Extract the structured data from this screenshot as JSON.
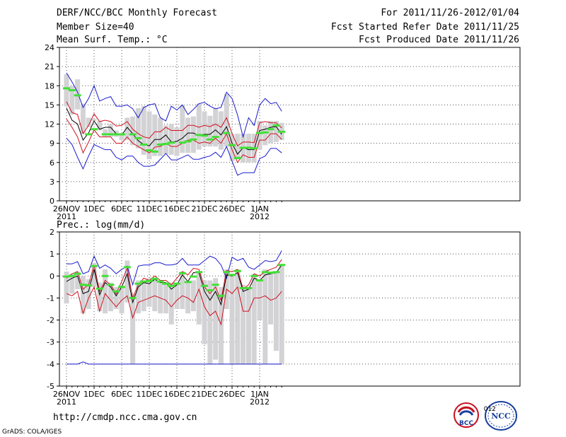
{
  "header": {
    "title": "DERF/NCC/BCC Monthly Forecast",
    "member_size": "Member Size=40",
    "variable": "Mean Surf. Temp.: °C",
    "period": "For 2011/11/26-2012/01/04",
    "start_date": "Fcst Started Refer Date 2011/11/25",
    "produced_date": "Fcst Produced Date 2011/11/26"
  },
  "footer": {
    "url": "http://cmdp.ncc.cma.gov.cn",
    "software": "GrADS: COLA/IGES",
    "logo_bcc": "BCC",
    "logo_ncc": "NCC",
    "logo_ncc_year": "2012"
  },
  "colors": {
    "mean": "#000000",
    "spread": "#d0101e",
    "envelope": "#1a1ad0",
    "box": "#d3d3d6",
    "median": "#43e036",
    "grid": "#555555"
  },
  "chart_data": [
    {
      "type": "line",
      "title": "Mean Surf. Temp.: °C",
      "x_tick_labels": [
        "26NOV",
        "1DEC",
        "6DEC",
        "11DEC",
        "16DEC",
        "21DEC",
        "26DEC",
        "1JAN"
      ],
      "x_tick_sublabels": [
        "2011",
        "",
        "",
        "",
        "",
        "",
        "",
        "2012"
      ],
      "ylim": [
        0,
        24
      ],
      "yticks": [
        0,
        3,
        6,
        9,
        12,
        15,
        18,
        21,
        24
      ],
      "series": [
        {
          "name": "max",
          "values": [
            20,
            18.6,
            17,
            14.6,
            16,
            18,
            15.6,
            16,
            16.3,
            14.8,
            14.8,
            15,
            14.4,
            13,
            14.6,
            15,
            15.2,
            13,
            12.5,
            14.8,
            14.2,
            15,
            13.5,
            14.3,
            15.2,
            15.4,
            14.8,
            14.4,
            14.6,
            17,
            16,
            13.4,
            10,
            13,
            11.8,
            15,
            16,
            15.2,
            15.4,
            14
          ]
        },
        {
          "name": "plus-std",
          "values": [
            15.5,
            13.8,
            13.5,
            10.5,
            11.8,
            13.6,
            12.4,
            12.6,
            12.4,
            11.7,
            11.8,
            12.4,
            11.2,
            10.5,
            10,
            9.8,
            10.8,
            10.8,
            11.5,
            11,
            11,
            11,
            11.8,
            11.8,
            11.5,
            11.8,
            11.6,
            12,
            11.5,
            13,
            10.5,
            8.6,
            9.2,
            9.2,
            9.1,
            12.2,
            12.4,
            12.2,
            12.2,
            11.4
          ]
        },
        {
          "name": "mean",
          "values": [
            14.5,
            12.6,
            12,
            9.5,
            10.6,
            12.5,
            11.2,
            11.5,
            11.5,
            10.5,
            10.3,
            11.5,
            10.5,
            9.4,
            8.8,
            8.6,
            9.6,
            9.6,
            10.3,
            9.2,
            9.3,
            9.8,
            10.6,
            10.6,
            10.2,
            10.4,
            10.4,
            11.1,
            10.3,
            11.6,
            9,
            7.3,
            8.3,
            8,
            8,
            11,
            11.2,
            11.5,
            11.6,
            10.4
          ]
        },
        {
          "name": "minus-std",
          "values": [
            12.8,
            11.5,
            10,
            7.5,
            9.2,
            11.1,
            10,
            10,
            10,
            9,
            9,
            10,
            9,
            8.5,
            8,
            7.5,
            8.4,
            8.5,
            9,
            8.5,
            8.5,
            9,
            9.5,
            9.5,
            9,
            9.2,
            9,
            9.8,
            9,
            10.5,
            8,
            6,
            7.2,
            6.8,
            6.8,
            9.5,
            9.5,
            10.5,
            10.5,
            9.6
          ]
        },
        {
          "name": "min",
          "values": [
            9.8,
            8.8,
            6.8,
            5,
            7,
            8.8,
            8.4,
            8,
            8,
            6.8,
            6.4,
            7,
            7,
            6,
            5.4,
            5.4,
            5.6,
            6.5,
            7.4,
            6.4,
            6.4,
            6.8,
            7.2,
            6.5,
            6.5,
            6.8,
            7,
            7.6,
            6.8,
            8.5,
            6.2,
            4,
            4.4,
            4.4,
            4.4,
            6.6,
            7,
            8.2,
            8.2,
            7.5
          ]
        }
      ],
      "boxes": {
        "low": [
          14.8,
          13.5,
          14.3,
          10.5,
          11.5,
          12.5,
          11,
          10,
          10,
          10,
          9.5,
          9.5,
          8.7,
          8.2,
          7.2,
          6.5,
          7,
          7,
          7.3,
          7.2,
          7,
          7.5,
          7.5,
          7.5,
          8,
          8.5,
          8.5,
          8.5,
          8,
          8.5,
          6.2,
          6.5,
          6,
          6,
          6,
          8,
          8.7,
          9,
          9.2,
          9.5
        ],
        "high": [
          19.8,
          18,
          19,
          15.2,
          13,
          12.8,
          12.5,
          11.2,
          12,
          11,
          10.5,
          13,
          13.2,
          14.5,
          14.8,
          14,
          13.5,
          13,
          11.8,
          12,
          11.5,
          15,
          13,
          13.2,
          15.2,
          14,
          13.3,
          14.5,
          14,
          16.7,
          10.5,
          10.5,
          10.5,
          10.5,
          10.5,
          12.5,
          11.8,
          12.5,
          12.5,
          12.2
        ],
        "median": [
          17.6,
          17.3,
          16.5,
          null,
          10.4,
          11.2,
          null,
          10.4,
          10.4,
          10.4,
          10.4,
          null,
          10.4,
          9.8,
          8.8,
          7.9,
          7.7,
          8.8,
          8.9,
          9.1,
          null,
          9.1,
          9.3,
          9.6,
          10.3,
          10.2,
          9.6,
          10,
          null,
          10.6,
          8.7,
          6.7,
          8.3,
          8.3,
          8.2,
          10.6,
          10.7,
          11.2,
          11.8,
          10.8
        ]
      }
    },
    {
      "type": "line",
      "title": "Prec.: log(mm/d)",
      "x_tick_labels": [
        "26NOV",
        "1DEC",
        "6DEC",
        "11DEC",
        "16DEC",
        "21DEC",
        "26DEC",
        "1JAN"
      ],
      "x_tick_sublabels": [
        "2011",
        "",
        "",
        "",
        "",
        "",
        "",
        "2012"
      ],
      "ylim": [
        -5,
        2
      ],
      "yticks": [
        -5,
        -4,
        -3,
        -2,
        -1,
        0,
        1,
        2
      ],
      "series": [
        {
          "name": "max",
          "values": [
            0.55,
            0.55,
            0.65,
            0.1,
            0.2,
            0.9,
            0.35,
            0.5,
            0.35,
            0.1,
            0.3,
            0.45,
            -0.4,
            0.45,
            0.5,
            0.5,
            0.6,
            0.6,
            0.5,
            0.5,
            0.55,
            0.8,
            0.5,
            0.5,
            0.5,
            0.7,
            0.9,
            0.8,
            0.5,
            -0.1,
            0.85,
            0.7,
            0.8,
            0.4,
            0.3,
            0.5,
            0.7,
            0.65,
            0.7,
            1.15
          ]
        },
        {
          "name": "plus-std",
          "values": [
            -0.1,
            0.1,
            0.2,
            -0.6,
            -0.4,
            0.5,
            -0.7,
            -0.2,
            -0.4,
            -0.8,
            -0.25,
            0.35,
            -1.0,
            -0.4,
            -0.1,
            -0.2,
            0.0,
            -0.2,
            -0.2,
            -0.4,
            -0.1,
            0.2,
            0.05,
            0.35,
            0.3,
            -0.5,
            -0.8,
            -0.5,
            -1.1,
            0.25,
            0.2,
            0.3,
            -0.6,
            -0.4,
            0.1,
            0.0,
            0.2,
            0.3,
            0.4,
            0.75
          ]
        },
        {
          "name": "mean",
          "values": [
            -0.25,
            -0.1,
            0.0,
            -0.8,
            -0.7,
            0.3,
            -0.85,
            -0.3,
            -0.5,
            -0.9,
            -0.5,
            0.1,
            -1.2,
            -0.5,
            -0.3,
            -0.35,
            -0.15,
            -0.3,
            -0.3,
            -0.6,
            -0.4,
            0.05,
            -0.25,
            0.15,
            0.15,
            -0.7,
            -1.1,
            -0.7,
            -1.3,
            0.05,
            0.0,
            0.15,
            -0.7,
            -0.6,
            -0.1,
            -0.2,
            0.05,
            0.1,
            0.15,
            0.5
          ]
        },
        {
          "name": "minus-std",
          "values": [
            -0.8,
            -0.9,
            -0.7,
            -1.7,
            -1.0,
            -0.5,
            -1.6,
            -0.8,
            -1.1,
            -1.4,
            -1.1,
            -0.9,
            -1.9,
            -1.2,
            -1.1,
            -1.0,
            -0.9,
            -1.0,
            -1.1,
            -1.4,
            -1.1,
            -0.9,
            -1.0,
            -1.2,
            -0.6,
            -1.4,
            -1.8,
            -1.6,
            -2.2,
            -0.6,
            -0.8,
            -0.5,
            -1.6,
            -1.6,
            -1.0,
            -1.0,
            -0.9,
            -1.1,
            -1.0,
            -0.7
          ]
        },
        {
          "name": "min",
          "values": [
            -4,
            -4,
            -4,
            -3.9,
            -4,
            -4,
            -4,
            -4,
            -4,
            -4,
            -4,
            -4,
            -4,
            -4,
            -4,
            -4,
            -4,
            -4,
            -4,
            -4,
            -4,
            -4,
            -4,
            -4,
            -4,
            -4,
            -4,
            -4,
            -4,
            -4,
            -4,
            -4,
            -4,
            -4,
            -4,
            -4,
            -4,
            -4,
            -4,
            -4
          ]
        }
      ],
      "boxes": {
        "low": [
          -1.25,
          -0.8,
          -0.6,
          -1.7,
          -1.5,
          -0.5,
          -1.6,
          -1.7,
          -1.6,
          -1.5,
          -1.7,
          -1.2,
          -4,
          -1.7,
          -1.6,
          -1.4,
          -1.6,
          -1.7,
          -1.7,
          -2.2,
          -1.5,
          -1.5,
          -1.7,
          -1.6,
          -2.2,
          -3.1,
          -4,
          -3.8,
          -4,
          -1.5,
          -4,
          -4,
          -4,
          -4,
          -4,
          -2,
          -4,
          -2.2,
          -3.4,
          -4
        ],
        "high": [
          0.2,
          0.1,
          0.2,
          0.0,
          -0.15,
          0.6,
          -0.3,
          0.3,
          -0.3,
          -0.5,
          -0.5,
          0.7,
          -0.8,
          -0.2,
          -0.2,
          -0.1,
          -0.1,
          -0.2,
          -0.4,
          -0.3,
          -0.3,
          0.2,
          -0.3,
          -0.2,
          0.2,
          -0.2,
          -0.2,
          -0.1,
          -0.5,
          0.3,
          0.1,
          0.3,
          -0.4,
          -0.5,
          0.1,
          -0.2,
          0.3,
          0.2,
          0.2,
          0.5
        ]
      }
    }
  ]
}
